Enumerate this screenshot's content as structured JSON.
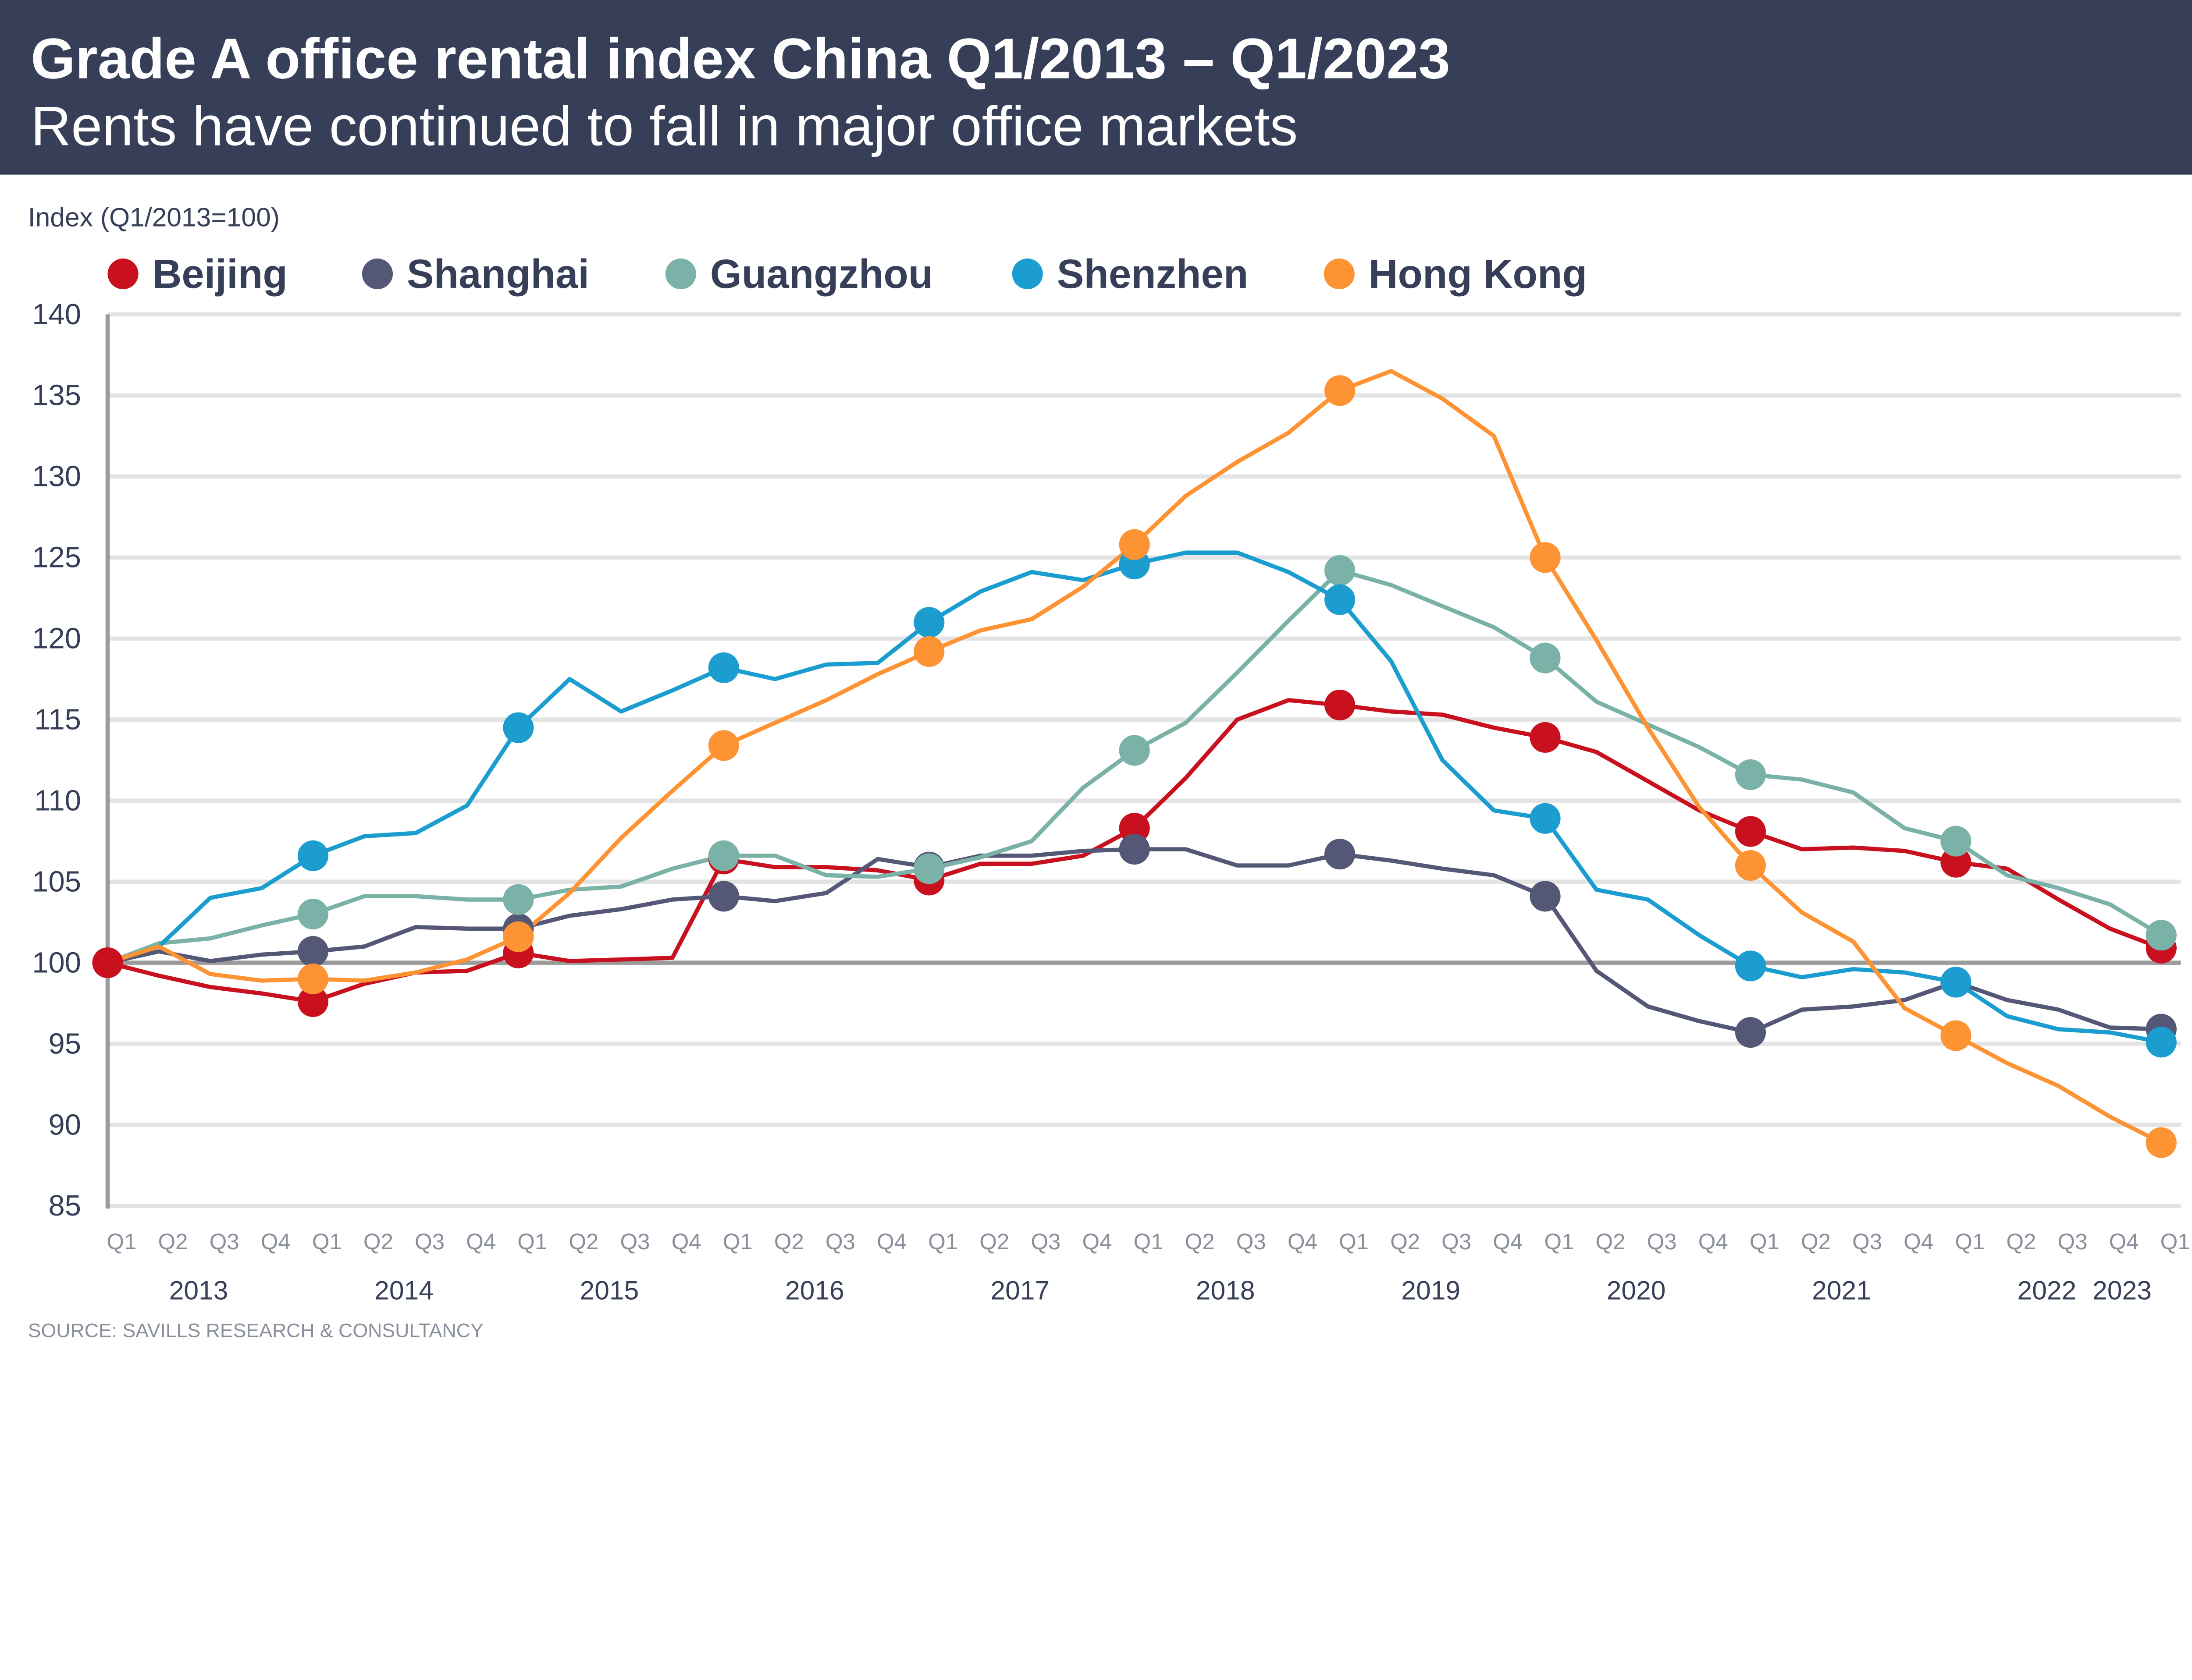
{
  "header": {
    "title": "Grade A office rental index China Q1/2013 – Q1/2023",
    "subtitle": "Rents have continued to fall in major office markets",
    "background_color": "#363f57"
  },
  "source": "SOURCE: SAVILLS RESEARCH & CONSULTANCY",
  "chart_data": {
    "type": "line",
    "title": "Grade A office rental index China Q1/2013 – Q1/2023",
    "subtitle": "Rents have continued to fall in major office markets",
    "ylabel": "Index (Q1/2013=100)",
    "xlabel": "",
    "ylim": [
      85,
      140
    ],
    "yticks": [
      85,
      90,
      95,
      100,
      105,
      110,
      115,
      120,
      125,
      130,
      135,
      140
    ],
    "grid": true,
    "legend_position": "top-left",
    "reference_line": 100,
    "quarter_labels": [
      "Q1",
      "Q2",
      "Q3",
      "Q4",
      "Q1",
      "Q2",
      "Q3",
      "Q4",
      "Q1",
      "Q2",
      "Q3",
      "Q4",
      "Q1",
      "Q2",
      "Q3",
      "Q4",
      "Q1",
      "Q2",
      "Q3",
      "Q4",
      "Q1",
      "Q2",
      "Q3",
      "Q4",
      "Q1",
      "Q2",
      "Q3",
      "Q4",
      "Q1",
      "Q2",
      "Q3",
      "Q4",
      "Q1",
      "Q2",
      "Q3",
      "Q4",
      "Q1",
      "Q2",
      "Q3",
      "Q4",
      "Q1"
    ],
    "year_labels": [
      "2013",
      "2014",
      "2015",
      "2016",
      "2017",
      "2018",
      "2019",
      "2020",
      "2021",
      "2022",
      "2023"
    ],
    "marker_every": "Q1",
    "series": [
      {
        "name": "Beijing",
        "color": "#c8101e",
        "values": [
          100,
          99.2,
          98.5,
          98.1,
          97.6,
          98.7,
          99.4,
          99.5,
          100.6,
          100.1,
          100.2,
          100.3,
          106.4,
          105.9,
          105.9,
          105.7,
          105.1,
          106.1,
          106.1,
          106.6,
          108.3,
          111.4,
          115.0,
          116.2,
          115.9,
          115.5,
          115.3,
          114.5,
          113.9,
          113.0,
          111.2,
          109.4,
          108.1,
          107.0,
          107.1,
          106.9,
          106.2,
          105.8,
          103.9,
          102.1,
          100.9
        ]
      },
      {
        "name": "Shanghai",
        "color": "#545775",
        "values": [
          100,
          100.7,
          100.1,
          100.5,
          100.7,
          101.0,
          102.2,
          102.1,
          102.1,
          102.9,
          103.3,
          103.9,
          104.1,
          103.8,
          104.3,
          106.4,
          105.9,
          106.6,
          106.6,
          106.9,
          107.0,
          107.0,
          106.0,
          106.0,
          106.7,
          106.3,
          105.8,
          105.4,
          104.1,
          99.5,
          97.3,
          96.4,
          95.7,
          97.1,
          97.3,
          97.7,
          98.8,
          97.7,
          97.1,
          96.0,
          95.9
        ]
      },
      {
        "name": "Guangzhou",
        "color": "#7bb2a8",
        "values": [
          100,
          101.2,
          101.5,
          102.3,
          103.0,
          104.1,
          104.1,
          103.9,
          103.9,
          104.5,
          104.7,
          105.8,
          106.6,
          106.6,
          105.4,
          105.3,
          105.8,
          106.5,
          107.5,
          110.8,
          113.1,
          114.8,
          117.9,
          121.1,
          124.2,
          123.3,
          122.0,
          120.7,
          118.8,
          116.1,
          114.7,
          113.3,
          111.6,
          111.3,
          110.5,
          108.3,
          107.5,
          105.4,
          104.6,
          103.6,
          101.7
        ]
      },
      {
        "name": "Shenzhen",
        "color": "#1b9dcf",
        "values": [
          100,
          101.0,
          104.0,
          104.6,
          106.6,
          107.8,
          108.0,
          109.7,
          114.5,
          117.5,
          115.5,
          116.8,
          118.2,
          117.5,
          118.4,
          118.5,
          121.0,
          122.9,
          124.1,
          123.6,
          124.6,
          125.3,
          125.3,
          124.1,
          122.4,
          118.6,
          112.5,
          109.4,
          108.9,
          104.5,
          103.9,
          101.7,
          99.8,
          99.1,
          99.6,
          99.4,
          98.8,
          96.7,
          95.9,
          95.7,
          95.1
        ]
      },
      {
        "name": "Hong Kong",
        "color": "#fe9334",
        "values": [
          100,
          101.0,
          99.3,
          98.9,
          99.0,
          98.9,
          99.4,
          100.2,
          101.6,
          104.3,
          107.7,
          110.6,
          113.4,
          114.8,
          116.2,
          117.8,
          119.2,
          120.5,
          121.2,
          123.2,
          125.8,
          128.8,
          130.9,
          132.7,
          135.3,
          136.5,
          134.8,
          132.5,
          125.0,
          119.9,
          114.5,
          109.6,
          106.0,
          103.1,
          101.3,
          97.2,
          95.5,
          93.8,
          92.4,
          90.5,
          88.9
        ]
      }
    ]
  }
}
